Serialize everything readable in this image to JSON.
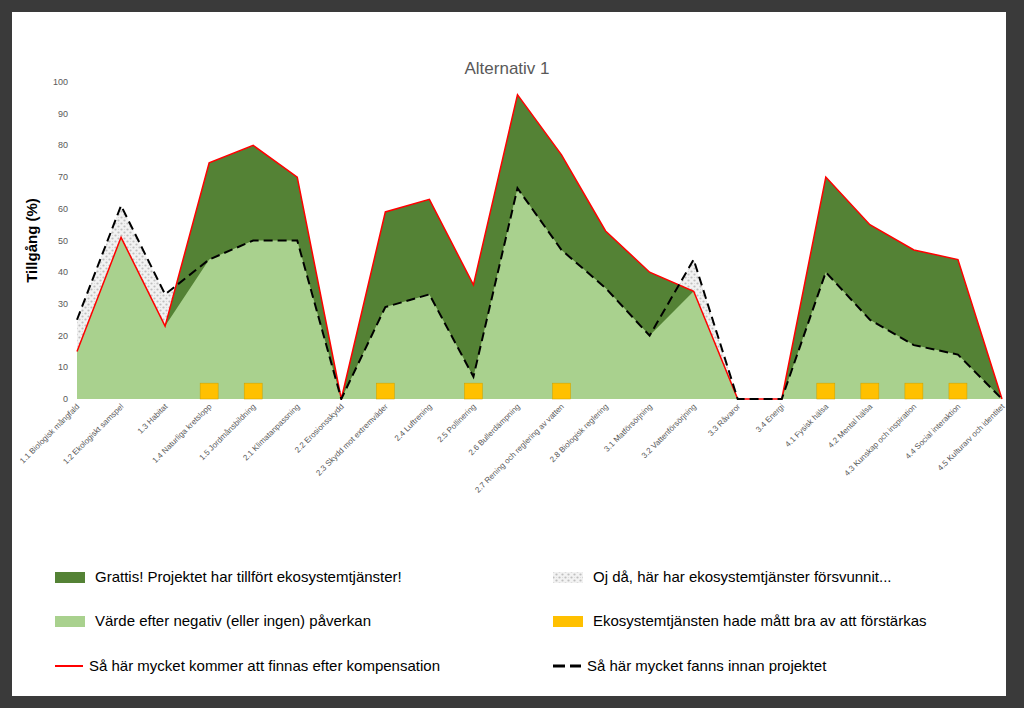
{
  "chart_data": {
    "type": "area",
    "title": "Alternativ 1",
    "y_label": "Tillgång (%)",
    "categories": [
      "1.1 Biologisk mångfald",
      "1.2 Ekologiskt samspel",
      "1.3 Habitat",
      "1.4 Naturliga kretslopp",
      "1.5 Jordmånsbildning",
      "2.1 Klimatanpassning",
      "2.2 Erosionsskydd",
      "2.3 Skydd mot extremväder",
      "2.4 Luftrening",
      "2.5 Pollinering",
      "2.6 Bullerdämpning",
      "2.7 Rening och reglering av vatten",
      "2.8 Biologisk reglering",
      "3.1 Matförsörjning",
      "3.2 Vattenförsörjning",
      "3.3 Råvaror",
      "3.4 Energi",
      "4.1 Fysisk hälsa",
      "4.2 Mental hälsa",
      "4.3 Kunskap och inspiration",
      "4.4 Social interaktion",
      "4.5 Kulturarv och identitet"
    ],
    "series": [
      {
        "name": "Grattis! Projektet har tillfört ekosystemtjänster!",
        "color": "#548235",
        "type": "area"
      },
      {
        "name": "Oj då, här har ekosystemtjänster försvunnit...",
        "color": "#bfbfbf",
        "type": "area"
      },
      {
        "name": "Värde efter negativ (eller ingen) påverkan",
        "color": "#a9d18e",
        "type": "area",
        "values": [
          15,
          51,
          23,
          44,
          50,
          50,
          0,
          29,
          33,
          7,
          66.5,
          47,
          35,
          20,
          34,
          0,
          0,
          40,
          25,
          17,
          14,
          0
        ]
      },
      {
        "name": "Ekosystemtjänsten hade mått bra av att förstärkas",
        "color": "#ffc000",
        "type": "bar",
        "values": [
          null,
          null,
          null,
          5,
          5,
          null,
          null,
          5,
          null,
          5,
          null,
          5,
          null,
          null,
          null,
          null,
          null,
          5,
          5,
          5,
          5,
          null
        ]
      },
      {
        "name": "Så här mycket kommer att finnas efter kompensation",
        "color": "#ff0000",
        "type": "line",
        "line_style": "solid",
        "values": [
          15,
          51,
          23,
          74.5,
          80,
          70,
          0,
          59,
          63,
          36,
          96,
          77,
          53,
          40,
          34,
          0,
          0,
          70,
          55,
          47,
          44,
          0
        ]
      },
      {
        "name": "Så här mycket fanns innan projektet",
        "color": "#000000",
        "type": "line",
        "line_style": "dashed",
        "values": [
          25,
          61,
          33,
          44,
          50,
          50,
          0,
          29,
          33,
          7,
          66.5,
          47,
          35,
          20,
          44,
          0,
          0,
          40,
          25,
          17,
          14,
          0
        ]
      }
    ],
    "ylim": [
      0,
      100
    ],
    "yticks": [
      0,
      10,
      20,
      30,
      40,
      50,
      60,
      70,
      80,
      90,
      100
    ],
    "grid": false,
    "legend": "bottom"
  }
}
